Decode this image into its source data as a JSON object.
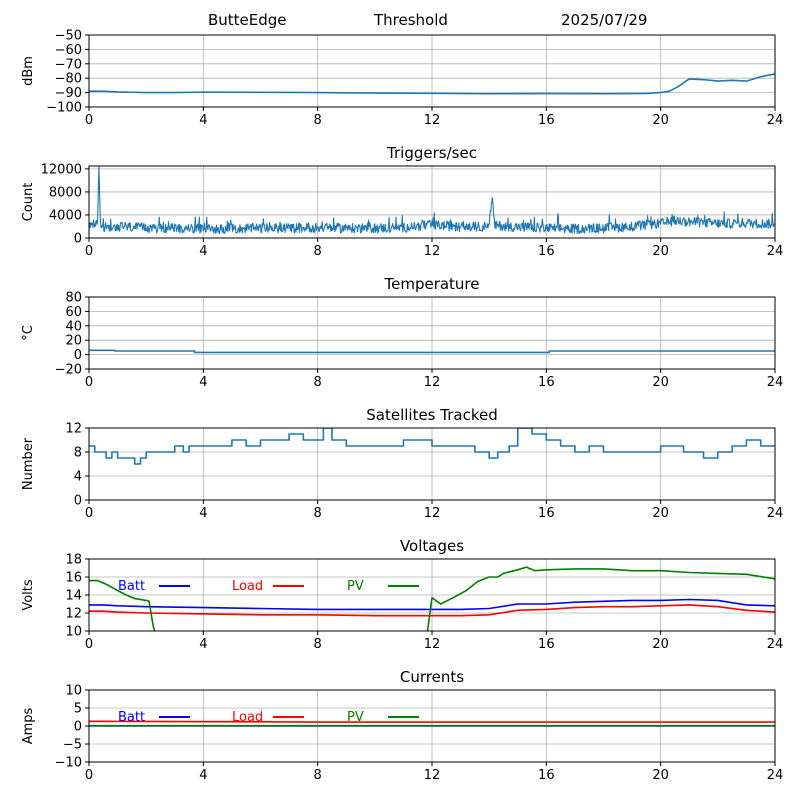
{
  "header": {
    "station": "ButteEdge",
    "mode": "Threshold",
    "date": "2025/07/29"
  },
  "chart_data": [
    {
      "type": "line",
      "title": "",
      "ylabel": "dBm",
      "xlim": [
        0,
        24
      ],
      "ylim": [
        -100,
        -50
      ],
      "xticks": [
        0,
        4,
        8,
        12,
        16,
        20,
        24
      ],
      "yticks": [
        -100,
        -90,
        -80,
        -70,
        -60,
        -50
      ],
      "ytick_labels": [
        "−100",
        "−90",
        "−80",
        "−70",
        "−60",
        "−50"
      ],
      "grid": true,
      "series": [
        {
          "color": "#1f77b4",
          "x": [
            0,
            0.5,
            1,
            2,
            3,
            4,
            6,
            8,
            10,
            12,
            14,
            16,
            18,
            19.5,
            20,
            20.3,
            20.6,
            21,
            21.5,
            22,
            22.5,
            23,
            23.5,
            24
          ],
          "y": [
            -89,
            -89,
            -89.5,
            -90,
            -90,
            -89.7,
            -89.8,
            -90,
            -90.3,
            -90.5,
            -90.8,
            -90.7,
            -90.8,
            -90.6,
            -90,
            -89,
            -86,
            -80.5,
            -81,
            -82,
            -81.5,
            -82,
            -79,
            -77
          ]
        }
      ]
    },
    {
      "type": "line",
      "title": "Triggers/sec",
      "ylabel": "Count",
      "xlim": [
        0,
        24
      ],
      "ylim": [
        0,
        12500
      ],
      "xticks": [
        0,
        4,
        8,
        12,
        16,
        20,
        24
      ],
      "yticks": [
        0,
        4000,
        8000,
        12000
      ],
      "ytick_labels": [
        "0",
        "4000",
        "8000",
        "12000"
      ],
      "grid": true,
      "series": [
        {
          "color": "#1f77b4",
          "x": [
            0,
            0.3,
            0.35,
            0.4,
            0.6,
            1,
            1.5,
            2,
            3,
            4,
            5,
            6,
            7,
            8,
            9,
            10,
            11,
            12,
            13,
            14,
            14.1,
            14.2,
            15,
            16,
            17,
            18,
            19,
            20,
            20.5,
            21,
            22,
            23,
            24
          ],
          "y": [
            2000,
            2500,
            12500,
            2200,
            1800,
            2000,
            1900,
            1700,
            1700,
            1600,
            1600,
            1700,
            1700,
            1800,
            1700,
            1700,
            1800,
            2300,
            1900,
            2000,
            7000,
            2200,
            1900,
            1700,
            1600,
            1700,
            2000,
            2500,
            3000,
            2800,
            2500,
            2600,
            2400
          ],
          "noise_amplitude": 1200
        }
      ]
    },
    {
      "type": "line",
      "title": "Temperature",
      "ylabel": "°C",
      "xlim": [
        0,
        24
      ],
      "ylim": [
        -20,
        80
      ],
      "xticks": [
        0,
        4,
        8,
        12,
        16,
        20,
        24
      ],
      "yticks": [
        -20,
        0,
        20,
        40,
        60,
        80
      ],
      "ytick_labels": [
        "−20",
        "0",
        "20",
        "40",
        "60",
        "80"
      ],
      "grid": true,
      "series": [
        {
          "color": "#1f77b4",
          "x": [
            0,
            0.9,
            0.9,
            3.7,
            3.7,
            16.1,
            16.1,
            24
          ],
          "y": [
            6,
            6,
            5,
            5,
            3,
            3,
            5,
            5
          ]
        }
      ]
    },
    {
      "type": "line",
      "title": "Satellites Tracked",
      "ylabel": "Number",
      "xlim": [
        0,
        24
      ],
      "ylim": [
        0,
        12
      ],
      "xticks": [
        0,
        4,
        8,
        12,
        16,
        20,
        24
      ],
      "yticks": [
        0,
        4,
        8,
        12
      ],
      "ytick_labels": [
        "0",
        "4",
        "8",
        "12"
      ],
      "grid": true,
      "step": true,
      "series": [
        {
          "color": "#1f77b4",
          "x": [
            0,
            0.2,
            0.6,
            0.8,
            1,
            1.6,
            1.8,
            2,
            2.6,
            3,
            3.3,
            3.5,
            3.8,
            4.5,
            5,
            5.5,
            6,
            6.5,
            7,
            7.5,
            8,
            8.2,
            8.5,
            9,
            10,
            11,
            11.5,
            12,
            12.5,
            13,
            13.5,
            14,
            14.3,
            14.7,
            15,
            15.5,
            16,
            16.5,
            17,
            17.5,
            18,
            18.5,
            19,
            19.5,
            20,
            20.8,
            21.5,
            22,
            22.5,
            23,
            23.5,
            24
          ],
          "y": [
            9,
            8,
            7,
            8,
            7,
            6,
            7,
            8,
            8,
            9,
            8,
            9,
            9,
            9,
            10,
            9,
            10,
            10,
            11,
            10,
            10,
            12,
            10,
            9,
            9,
            10,
            10,
            9,
            9,
            9,
            8,
            7,
            8,
            9,
            12,
            11,
            10,
            9,
            8,
            9,
            8,
            8,
            8,
            8,
            9,
            8,
            7,
            8,
            9,
            10,
            9,
            9
          ]
        }
      ]
    },
    {
      "type": "line",
      "title": "Voltages",
      "ylabel": "Volts",
      "xlim": [
        0,
        24
      ],
      "ylim": [
        10,
        18
      ],
      "xticks": [
        0,
        4,
        8,
        12,
        16,
        20,
        24
      ],
      "yticks": [
        10,
        12,
        14,
        16,
        18
      ],
      "ytick_labels": [
        "10",
        "12",
        "14",
        "16",
        "18"
      ],
      "grid": true,
      "legend": "top-left",
      "series": [
        {
          "name": "Batt",
          "color": "#0000ff",
          "x": [
            0,
            0.5,
            1,
            2,
            4,
            6,
            8,
            10,
            12,
            13,
            14,
            15,
            16,
            17,
            18,
            19,
            20,
            21,
            22,
            23,
            24
          ],
          "y": [
            12.9,
            12.9,
            12.8,
            12.7,
            12.6,
            12.5,
            12.4,
            12.4,
            12.4,
            12.4,
            12.5,
            13,
            13,
            13.2,
            13.3,
            13.4,
            13.4,
            13.5,
            13.4,
            12.9,
            12.8
          ]
        },
        {
          "name": "Load",
          "color": "#ff0000",
          "x": [
            0,
            0.5,
            1,
            2,
            4,
            6,
            8,
            10,
            12,
            13,
            14,
            15,
            16,
            17,
            18,
            19,
            20,
            21,
            22,
            23,
            24
          ],
          "y": [
            12.2,
            12.2,
            12.1,
            12,
            11.9,
            11.8,
            11.8,
            11.7,
            11.7,
            11.7,
            11.8,
            12.3,
            12.4,
            12.6,
            12.7,
            12.7,
            12.8,
            12.9,
            12.7,
            12.3,
            12.1
          ]
        },
        {
          "name": "PV",
          "color": "#008000",
          "x": [
            0,
            0.3,
            0.6,
            1,
            1.3,
            1.6,
            2,
            2.1,
            2.25,
            2.4,
            11.8,
            12,
            12.3,
            12.8,
            13.2,
            13.6,
            14,
            14.3,
            14.5,
            15,
            15.3,
            15.6,
            16,
            17,
            18,
            19,
            20,
            21,
            22,
            23,
            24
          ],
          "y": [
            15.6,
            15.6,
            15.2,
            14.5,
            14,
            13.6,
            13.4,
            13.3,
            10.5,
            9,
            9,
            13.7,
            13,
            13.8,
            14.5,
            15.5,
            16,
            16,
            16.4,
            16.8,
            17.1,
            16.7,
            16.8,
            16.9,
            16.9,
            16.7,
            16.7,
            16.5,
            16.4,
            16.3,
            15.8
          ]
        }
      ]
    },
    {
      "type": "line",
      "title": "Currents",
      "ylabel": "Amps",
      "xlim": [
        0,
        24
      ],
      "ylim": [
        -10,
        10
      ],
      "xticks": [
        0,
        4,
        8,
        12,
        16,
        20,
        24
      ],
      "yticks": [
        -10,
        -5,
        0,
        5,
        10
      ],
      "ytick_labels": [
        "−10",
        "−5",
        "0",
        "5",
        "10"
      ],
      "grid": true,
      "legend": "top-left",
      "series": [
        {
          "name": "Batt",
          "color": "#0000ff",
          "x": [
            0,
            24
          ],
          "y": [
            0,
            0
          ]
        },
        {
          "name": "Load",
          "color": "#ff0000",
          "x": [
            0,
            4,
            8,
            12,
            16,
            20,
            24
          ],
          "y": [
            1.3,
            1.2,
            1.1,
            1.1,
            1.1,
            1.1,
            1.1
          ]
        },
        {
          "name": "PV",
          "color": "#008000",
          "x": [
            0,
            24
          ],
          "y": [
            0.1,
            0.1
          ]
        }
      ]
    }
  ]
}
